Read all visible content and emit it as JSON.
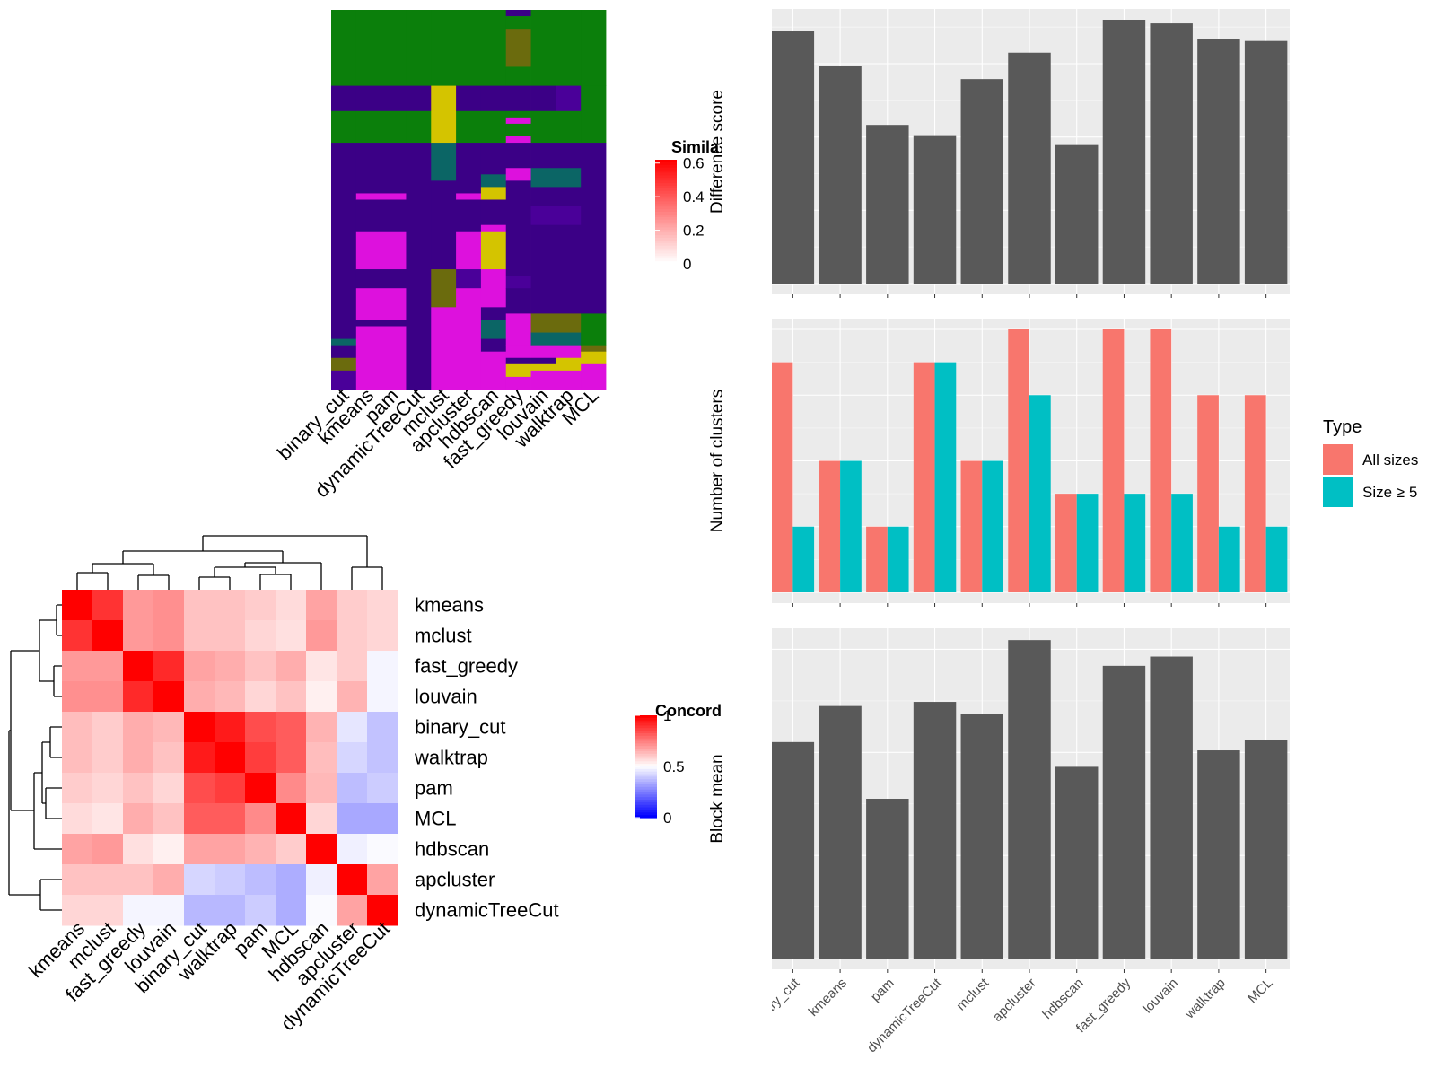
{
  "colors": {
    "panel_bg": "#ebebeb",
    "grid": "#ffffff",
    "bar_gray": "#595959",
    "all_sizes": "#f8766d",
    "size_ge5": "#00bfc4",
    "heat_high": "#ff0000",
    "heat_low": "#ffffff",
    "conc_low": "#0000ff",
    "green": "#0b7f0b",
    "navy": "#3b0086",
    "purple": "#4a0099",
    "magenta": "#dd11dd",
    "olive": "#6b6b0d",
    "teal": "#0b6565",
    "yellow": "#d4c400"
  },
  "top_left": {
    "legend_title": "Simila",
    "legend_ticks": [
      "0.6",
      "0.4",
      "0.2",
      "0"
    ],
    "column_labels": [
      "binary_cut",
      "kmeans",
      "pam",
      "dynamicTreeCut",
      "mclust",
      "apcluster",
      "hdbscan",
      "fast_greedy",
      "louvain",
      "walktrap",
      "MCL"
    ]
  },
  "bottom_left": {
    "legend_title": "Concord",
    "legend_ticks": [
      "1",
      "0.5",
      "0"
    ],
    "order": [
      "kmeans",
      "mclust",
      "fast_greedy",
      "louvain",
      "binary_cut",
      "walktrap",
      "pam",
      "MCL",
      "hdbscan",
      "apcluster",
      "dynamicTreeCut"
    ]
  },
  "chart_data": [
    {
      "type": "heatmap",
      "title": "",
      "legend_title": "Concord",
      "value_range": [
        0,
        1
      ],
      "rows": [
        "kmeans",
        "mclust",
        "fast_greedy",
        "louvain",
        "binary_cut",
        "walktrap",
        "pam",
        "MCL",
        "hdbscan",
        "apcluster",
        "dynamicTreeCut"
      ],
      "columns": [
        "kmeans",
        "mclust",
        "fast_greedy",
        "louvain",
        "binary_cut",
        "walktrap",
        "pam",
        "MCL",
        "hdbscan",
        "apcluster",
        "dynamicTreeCut"
      ],
      "values": [
        [
          1.0,
          0.9,
          0.7,
          0.72,
          0.62,
          0.62,
          0.6,
          0.57,
          0.68,
          0.6,
          0.58
        ],
        [
          0.9,
          1.0,
          0.7,
          0.72,
          0.62,
          0.62,
          0.58,
          0.56,
          0.7,
          0.6,
          0.58
        ],
        [
          0.7,
          0.7,
          1.0,
          0.92,
          0.68,
          0.66,
          0.62,
          0.66,
          0.55,
          0.6,
          0.48
        ],
        [
          0.72,
          0.72,
          0.92,
          1.0,
          0.66,
          0.64,
          0.58,
          0.62,
          0.53,
          0.65,
          0.48
        ],
        [
          0.63,
          0.6,
          0.66,
          0.64,
          1.0,
          0.95,
          0.85,
          0.82,
          0.65,
          0.45,
          0.38
        ],
        [
          0.63,
          0.6,
          0.66,
          0.62,
          0.95,
          1.0,
          0.88,
          0.82,
          0.63,
          0.42,
          0.38
        ],
        [
          0.6,
          0.58,
          0.62,
          0.58,
          0.85,
          0.88,
          1.0,
          0.73,
          0.64,
          0.37,
          0.4
        ],
        [
          0.57,
          0.55,
          0.66,
          0.62,
          0.82,
          0.82,
          0.73,
          1.0,
          0.58,
          0.33,
          0.33
        ],
        [
          0.68,
          0.7,
          0.56,
          0.53,
          0.68,
          0.68,
          0.65,
          0.6,
          1.0,
          0.47,
          0.49
        ],
        [
          0.62,
          0.62,
          0.62,
          0.66,
          0.42,
          0.4,
          0.37,
          0.34,
          0.47,
          1.0,
          0.68
        ],
        [
          0.58,
          0.58,
          0.48,
          0.48,
          0.36,
          0.36,
          0.4,
          0.34,
          0.49,
          0.68,
          1.0
        ]
      ]
    },
    {
      "type": "bar",
      "title": "",
      "xlabel": "",
      "ylabel": "Difference score",
      "categories": [
        "binary_cut",
        "kmeans",
        "pam",
        "dynamicTreeCut",
        "mclust",
        "apcluster",
        "hdbscan",
        "fast_greedy",
        "louvain",
        "walktrap",
        "MCL"
      ],
      "values": [
        0.69,
        0.595,
        0.433,
        0.405,
        0.558,
        0.63,
        0.378,
        0.72,
        0.71,
        0.668,
        0.662
      ],
      "ylim": [
        0,
        0.72
      ],
      "yticks": [
        "0.0",
        "0.2",
        "0.4",
        "0.6"
      ],
      "grid": true
    },
    {
      "type": "bar",
      "title": "",
      "xlabel": "",
      "ylabel": "Number of clusters",
      "categories": [
        "binary_cut",
        "kmeans",
        "pam",
        "dynamicTreeCut",
        "mclust",
        "apcluster",
        "hdbscan",
        "fast_greedy",
        "louvain",
        "walktrap",
        "MCL"
      ],
      "legend_title": "Type",
      "legend_position": "right",
      "series": [
        {
          "name": "All sizes",
          "values": [
            7,
            4,
            2,
            7,
            4,
            8,
            3,
            8,
            8,
            6,
            6
          ]
        },
        {
          "name": "Size ≥ 5",
          "values": [
            2,
            4,
            2,
            7,
            4,
            6,
            3,
            3,
            3,
            2,
            2
          ]
        }
      ],
      "ylim": [
        0,
        8
      ],
      "yticks": [
        "0",
        "2",
        "4",
        "6",
        "8"
      ],
      "grid": true
    },
    {
      "type": "bar",
      "title": "",
      "xlabel": "",
      "ylabel": "Block mean",
      "categories": [
        "binary_cut",
        "kmeans",
        "pam",
        "dynamicTreeCut",
        "mclust",
        "apcluster",
        "hdbscan",
        "fast_greedy",
        "louvain",
        "walktrap",
        "MCL"
      ],
      "values": [
        0.21,
        0.245,
        0.155,
        0.249,
        0.237,
        0.309,
        0.186,
        0.284,
        0.293,
        0.202,
        0.212
      ],
      "ylim": [
        0,
        0.31
      ],
      "yticks": [
        "0.0",
        "0.1",
        "0.2",
        "0.3"
      ],
      "grid": true
    }
  ]
}
